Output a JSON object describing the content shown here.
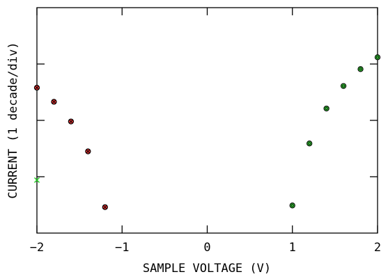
{
  "chart_data": {
    "type": "scatter",
    "title": "",
    "xlabel": "SAMPLE VOLTAGE (V)",
    "ylabel": "CURRENT  (1 decade/div)",
    "xlim": [
      -2,
      2
    ],
    "ylim": [
      -1,
      3
    ],
    "x_ticks": [
      -2,
      -1,
      0,
      1,
      2
    ],
    "x_tick_labels": [
      "−2",
      "−1",
      "0",
      "1",
      "2"
    ],
    "y_ticks": [
      0,
      1,
      2
    ],
    "grid": false,
    "series": [
      {
        "marker": "circle-x",
        "fill": "#e03030",
        "stroke": "#000000",
        "points": [
          {
            "x": -2.0,
            "y": 1.58
          },
          {
            "x": -1.8,
            "y": 1.33
          },
          {
            "x": -1.6,
            "y": 0.98
          },
          {
            "x": -1.4,
            "y": 0.45
          },
          {
            "x": -1.2,
            "y": -0.54
          }
        ]
      },
      {
        "marker": "circle-o",
        "fill": "#3ad23a",
        "stroke": "#000000",
        "points": [
          {
            "x": 1.0,
            "y": -0.51
          },
          {
            "x": 1.2,
            "y": 0.59
          },
          {
            "x": 1.4,
            "y": 1.21
          },
          {
            "x": 1.6,
            "y": 1.61
          },
          {
            "x": 1.8,
            "y": 1.91
          },
          {
            "x": 2.0,
            "y": 2.12
          }
        ]
      },
      {
        "marker": "cross",
        "fill": "#22cc22",
        "stroke": "#22cc22",
        "points": [
          {
            "x": -2.0,
            "y": -0.06
          }
        ]
      }
    ]
  }
}
